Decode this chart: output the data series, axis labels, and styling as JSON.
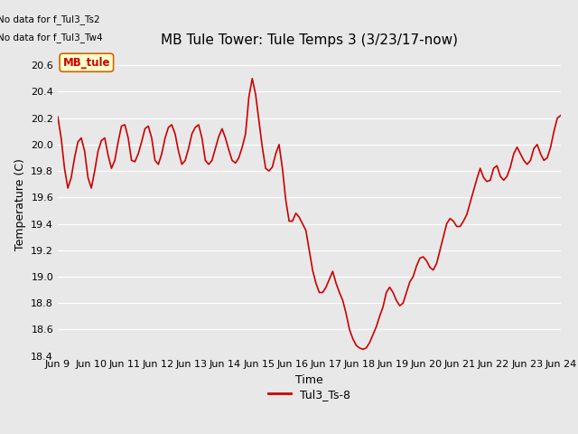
{
  "title": "MB Tule Tower: Tule Temps 3 (3/23/17-now)",
  "xlabel": "Time",
  "ylabel": "Temperature (C)",
  "no_data_text": [
    "No data for f_Tul3_Ts2",
    "No data for f_Tul3_Tw4"
  ],
  "legend_label": "Tul3_Ts-8",
  "legend_box_label": "MB_tule",
  "line_color": "#cc0000",
  "ylim": [
    18.4,
    20.7
  ],
  "xlim": [
    0,
    15.0
  ],
  "yticks": [
    18.4,
    18.6,
    18.8,
    19.0,
    19.2,
    19.4,
    19.6,
    19.8,
    20.0,
    20.2,
    20.4,
    20.6
  ],
  "xtick_labels": [
    "Jun 9",
    "Jun 10",
    "Jun 11",
    "Jun 12",
    "Jun 13",
    "Jun 14",
    "Jun 15",
    "Jun 16",
    "Jun 17",
    "Jun 18",
    "Jun 19",
    "Jun 20",
    "Jun 21",
    "Jun 22",
    "Jun 23",
    "Jun 24"
  ],
  "x": [
    0.0,
    0.1,
    0.2,
    0.3,
    0.4,
    0.5,
    0.6,
    0.7,
    0.8,
    0.9,
    1.0,
    1.1,
    1.2,
    1.3,
    1.4,
    1.5,
    1.6,
    1.7,
    1.8,
    1.9,
    2.0,
    2.1,
    2.2,
    2.3,
    2.4,
    2.5,
    2.6,
    2.7,
    2.8,
    2.9,
    3.0,
    3.1,
    3.2,
    3.3,
    3.4,
    3.5,
    3.6,
    3.7,
    3.8,
    3.9,
    4.0,
    4.1,
    4.2,
    4.3,
    4.4,
    4.5,
    4.6,
    4.7,
    4.8,
    4.9,
    5.0,
    5.1,
    5.2,
    5.3,
    5.4,
    5.5,
    5.6,
    5.7,
    5.8,
    5.9,
    6.0,
    6.1,
    6.2,
    6.3,
    6.4,
    6.5,
    6.6,
    6.7,
    6.8,
    6.9,
    7.0,
    7.1,
    7.2,
    7.3,
    7.4,
    7.5,
    7.6,
    7.7,
    7.8,
    7.9,
    8.0,
    8.1,
    8.2,
    8.3,
    8.4,
    8.5,
    8.6,
    8.7,
    8.8,
    8.9,
    9.0,
    9.1,
    9.2,
    9.3,
    9.4,
    9.5,
    9.6,
    9.7,
    9.8,
    9.9,
    10.0,
    10.1,
    10.2,
    10.3,
    10.4,
    10.5,
    10.6,
    10.7,
    10.8,
    10.9,
    11.0,
    11.1,
    11.2,
    11.3,
    11.4,
    11.5,
    11.6,
    11.7,
    11.8,
    11.9,
    12.0,
    12.1,
    12.2,
    12.3,
    12.4,
    12.5,
    12.6,
    12.7,
    12.8,
    12.9,
    13.0,
    13.1,
    13.2,
    13.3,
    13.4,
    13.5,
    13.6,
    13.7,
    13.8,
    13.9,
    14.0,
    14.1,
    14.2,
    14.3,
    14.4,
    14.5,
    14.6,
    14.7,
    14.8,
    14.9,
    15.0
  ],
  "y": [
    20.21,
    20.05,
    19.82,
    19.67,
    19.75,
    19.9,
    20.02,
    20.05,
    19.95,
    19.75,
    19.67,
    19.8,
    19.95,
    20.03,
    20.05,
    19.92,
    19.82,
    19.88,
    20.02,
    20.14,
    20.15,
    20.05,
    19.88,
    19.87,
    19.93,
    20.02,
    20.12,
    20.14,
    20.05,
    19.88,
    19.85,
    19.93,
    20.05,
    20.13,
    20.15,
    20.08,
    19.95,
    19.85,
    19.88,
    19.97,
    20.08,
    20.13,
    20.15,
    20.05,
    19.88,
    19.85,
    19.88,
    19.97,
    20.06,
    20.12,
    20.05,
    19.96,
    19.88,
    19.86,
    19.9,
    19.98,
    20.08,
    20.36,
    20.5,
    20.38,
    20.18,
    19.98,
    19.82,
    19.8,
    19.83,
    19.93,
    20.0,
    19.82,
    19.58,
    19.42,
    19.42,
    19.48,
    19.45,
    19.4,
    19.35,
    19.2,
    19.05,
    18.95,
    18.88,
    18.88,
    18.92,
    18.98,
    19.04,
    18.95,
    18.88,
    18.82,
    18.72,
    18.6,
    18.53,
    18.48,
    18.46,
    18.45,
    18.46,
    18.5,
    18.56,
    18.62,
    18.7,
    18.77,
    18.88,
    18.92,
    18.88,
    18.82,
    18.78,
    18.8,
    18.88,
    18.96,
    19.0,
    19.08,
    19.14,
    19.15,
    19.12,
    19.07,
    19.05,
    19.1,
    19.2,
    19.3,
    19.4,
    19.44,
    19.42,
    19.38,
    19.38,
    19.42,
    19.47,
    19.56,
    19.65,
    19.74,
    19.82,
    19.75,
    19.72,
    19.73,
    19.82,
    19.84,
    19.76,
    19.73,
    19.76,
    19.83,
    19.93,
    19.98,
    19.93,
    19.88,
    19.85,
    19.88,
    19.97,
    20.0,
    19.93,
    19.88,
    19.9,
    19.98,
    20.1,
    20.2,
    20.22
  ],
  "bg_color": "#e8e8e8",
  "plot_bg_color": "#e8e8e8",
  "grid_color": "#ffffff",
  "title_fontsize": 11,
  "axis_fontsize": 9,
  "tick_fontsize": 8
}
